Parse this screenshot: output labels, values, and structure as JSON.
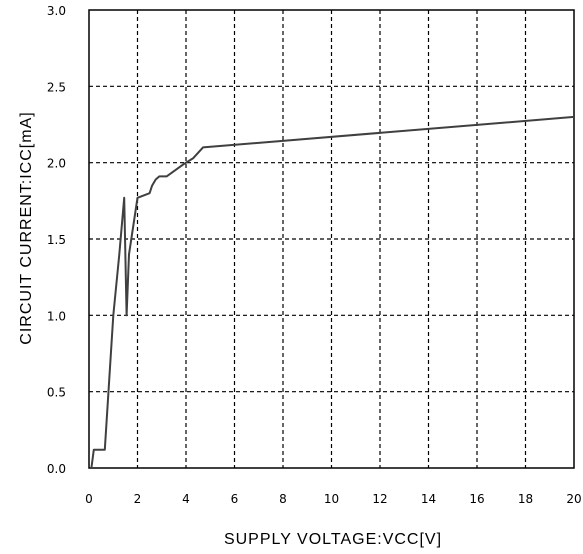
{
  "chart_data": {
    "type": "line",
    "title": "",
    "xlabel": "SUPPLY VOLTAGE:VCC[V]",
    "ylabel": "CIRCUIT CURRENT:ICC[mA]",
    "xlim": [
      0,
      20
    ],
    "ylim": [
      0,
      30
    ],
    "xticks": [
      0,
      2,
      4,
      6,
      8,
      10,
      12,
      14,
      16,
      18,
      20
    ],
    "xtick_labels": [
      "0",
      "2",
      "4",
      "6",
      "8",
      "10",
      "12",
      "14",
      "16",
      "18",
      "20"
    ],
    "yticks": [
      0,
      5,
      10,
      15,
      20,
      25,
      30
    ],
    "ytick_labels": [
      "0.0",
      "0.5",
      "1.0",
      "1.5",
      "2.0",
      "2.5",
      "3.0"
    ],
    "grid": true,
    "line_color": "#404040",
    "series": [
      {
        "x": [
          0.1,
          0.2,
          0.65,
          1.0,
          1.25,
          1.45,
          1.55,
          1.65,
          2.0,
          2.5,
          2.6,
          2.75,
          2.9,
          3.2,
          3.9,
          4.3,
          4.7,
          20.0
        ],
        "y": [
          0.0,
          1.2,
          1.2,
          10.0,
          14.0,
          17.7,
          10.0,
          14.0,
          17.7,
          18.0,
          18.5,
          18.9,
          19.1,
          19.1,
          19.9,
          20.3,
          21.0,
          23.0
        ]
      }
    ]
  }
}
